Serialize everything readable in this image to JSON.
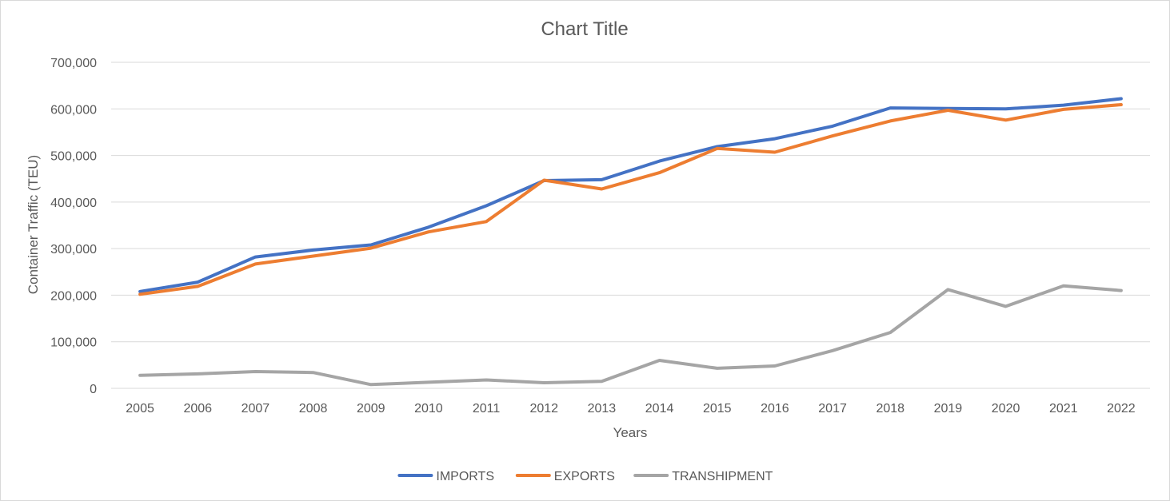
{
  "chart_data": {
    "type": "line",
    "title": "Chart Title",
    "xlabel": "Years",
    "ylabel": "Container Traffic (TEU)",
    "ylim": [
      0,
      700000
    ],
    "yticks": [
      0,
      100000,
      200000,
      300000,
      400000,
      500000,
      600000,
      700000
    ],
    "ytick_labels": [
      "0",
      "100,000",
      "200,000",
      "300,000",
      "400,000",
      "500,000",
      "600,000",
      "700,000"
    ],
    "grid": true,
    "legend_position": "bottom",
    "categories": [
      "2005",
      "2006",
      "2007",
      "2008",
      "2009",
      "2010",
      "2011",
      "2012",
      "2013",
      "2014",
      "2015",
      "2016",
      "2017",
      "2018",
      "2019",
      "2020",
      "2021",
      "2022"
    ],
    "series": [
      {
        "name": "IMPORTS",
        "color": "#4472c4",
        "values": [
          208000,
          228000,
          282000,
          297000,
          308000,
          346000,
          392000,
          446000,
          448000,
          488000,
          519000,
          536000,
          563000,
          602000,
          601000,
          600000,
          608000,
          622000
        ]
      },
      {
        "name": "EXPORTS",
        "color": "#ed7d31",
        "values": [
          202000,
          219000,
          267000,
          284000,
          301000,
          336000,
          358000,
          447000,
          428000,
          463000,
          515000,
          507000,
          542000,
          574000,
          597000,
          576000,
          599000,
          609000
        ]
      },
      {
        "name": "TRANSHIPMENT",
        "color": "#a5a5a5",
        "values": [
          28000,
          31000,
          36000,
          34000,
          8000,
          13000,
          18000,
          12000,
          15000,
          60000,
          43000,
          48000,
          81000,
          120000,
          212000,
          176000,
          220000,
          210000
        ]
      }
    ]
  }
}
